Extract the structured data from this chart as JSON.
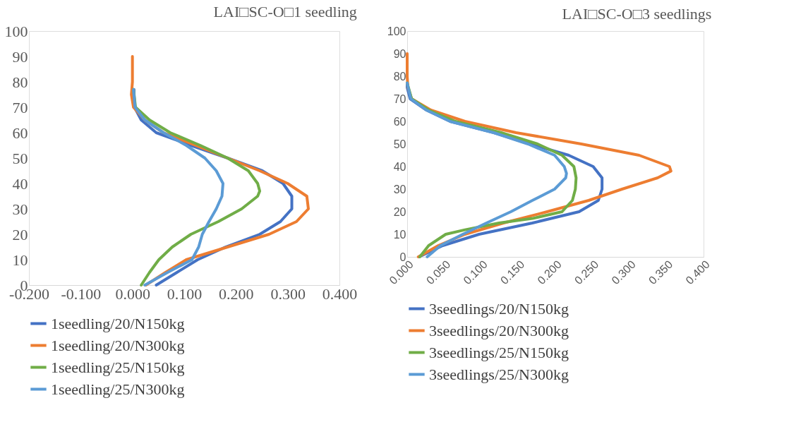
{
  "chart_data": [
    {
      "type": "line",
      "title": "LAI□SC-O□1 seedling",
      "xlim": [
        -0.2,
        0.4
      ],
      "xticks": [
        {
          "value": -0.2,
          "label": "-0.200"
        },
        {
          "value": -0.1,
          "label": "-0.100"
        },
        {
          "value": 0,
          "label": "0.000"
        },
        {
          "value": 0.1,
          "label": "0.100"
        },
        {
          "value": 0.2,
          "label": "0.200"
        },
        {
          "value": 0.3,
          "label": "0.300"
        },
        {
          "value": 0.4,
          "label": "0.400"
        }
      ],
      "ylim": [
        0,
        100
      ],
      "yticks": [
        0,
        10,
        20,
        30,
        40,
        50,
        60,
        70,
        80,
        90,
        100
      ],
      "legend": "bottom",
      "grid": false,
      "marker": "none",
      "series": [
        {
          "name": "1seedling/20/N150kg",
          "color": "#4472c4",
          "x": [
            0.003,
            0.004,
            0.017,
            0.046,
            0.113,
            0.184,
            0.251,
            0.291,
            0.308,
            0.308,
            0.286,
            0.246,
            0.18,
            0.126,
            0.086,
            0.046
          ],
          "values": [
            77,
            70,
            65,
            60,
            55,
            50,
            45,
            40,
            35,
            30,
            25,
            20,
            15,
            10,
            5,
            0
          ]
        },
        {
          "name": "1seedling/20/N300kg",
          "color": "#ed7d31",
          "x": [
            0.0,
            0.0,
            -0.002,
            0.002,
            0.024,
            0.06,
            0.122,
            0.184,
            0.246,
            0.3,
            0.337,
            0.34,
            0.317,
            0.264,
            0.184,
            0.104,
            0.064,
            0.026
          ],
          "values": [
            90,
            80,
            75,
            70,
            65,
            60,
            55,
            50,
            45,
            40,
            35,
            30,
            25,
            20,
            15,
            10,
            5,
            0
          ]
        },
        {
          "name": "1seedling/25/N150kg",
          "color": "#70ad47",
          "x": [
            0.002,
            0.006,
            0.033,
            0.073,
            0.131,
            0.184,
            0.224,
            0.242,
            0.246,
            0.242,
            0.211,
            0.166,
            0.113,
            0.077,
            0.051,
            0.033,
            0.017
          ],
          "values": [
            77,
            70,
            65,
            60,
            55,
            50,
            45,
            40,
            37,
            35,
            30,
            25,
            20,
            15,
            10,
            5,
            0
          ]
        },
        {
          "name": "1seedling/25/N300kg",
          "color": "#5b9bd5",
          "x": [
            0.002,
            0.005,
            0.024,
            0.06,
            0.104,
            0.14,
            0.162,
            0.175,
            0.173,
            0.162,
            0.148,
            0.135,
            0.128,
            0.115,
            0.068,
            0.024
          ],
          "values": [
            77,
            70,
            65,
            60,
            55,
            50,
            45,
            40,
            35,
            30,
            25,
            20,
            15,
            10,
            5,
            0
          ]
        }
      ]
    },
    {
      "type": "line",
      "title": "LAI□SC-O□3 seedlings",
      "xlim": [
        0,
        0.4
      ],
      "xticks": [
        {
          "value": 0,
          "label": "0.000"
        },
        {
          "value": 0.05,
          "label": "0.050"
        },
        {
          "value": 0.1,
          "label": "0.100"
        },
        {
          "value": 0.15,
          "label": "0.150"
        },
        {
          "value": 0.2,
          "label": "0.200"
        },
        {
          "value": 0.25,
          "label": "0.250"
        },
        {
          "value": 0.3,
          "label": "0.300"
        },
        {
          "value": 0.35,
          "label": "0.350"
        },
        {
          "value": 0.4,
          "label": "0.400"
        }
      ],
      "ylim": [
        0,
        100
      ],
      "yticks": [
        0,
        10,
        20,
        30,
        40,
        50,
        60,
        70,
        80,
        90,
        100
      ],
      "legend": "bottom",
      "grid": false,
      "marker": "none",
      "series": [
        {
          "name": "3seedlings/20/N150kg",
          "color": "#4472c4",
          "x": [
            0.0,
            0.0,
            0.004,
            0.026,
            0.058,
            0.117,
            0.166,
            0.218,
            0.251,
            0.263,
            0.263,
            0.258,
            0.232,
            0.169,
            0.097,
            0.048,
            0.016
          ],
          "values": [
            77,
            75,
            70,
            65,
            60,
            55,
            50,
            45,
            40,
            35,
            30,
            25,
            20,
            15,
            10,
            5,
            0
          ]
        },
        {
          "name": "3seedlings/20/N300kg",
          "color": "#ed7d31",
          "x": [
            0.0,
            0.0,
            0.001,
            0.006,
            0.032,
            0.078,
            0.147,
            0.235,
            0.313,
            0.354,
            0.356,
            0.338,
            0.29,
            0.245,
            0.189,
            0.13,
            0.078,
            0.042,
            0.015
          ],
          "values": [
            90,
            80,
            75,
            70,
            65,
            60,
            55,
            50,
            45,
            40,
            38,
            35,
            30,
            25,
            20,
            15,
            10,
            5,
            0
          ]
        },
        {
          "name": "3seedlings/25/N150kg",
          "color": "#70ad47",
          "x": [
            0.0,
            0.006,
            0.029,
            0.065,
            0.127,
            0.176,
            0.209,
            0.225,
            0.228,
            0.227,
            0.223,
            0.209,
            0.169,
            0.124,
            0.078,
            0.052,
            0.029,
            0.017
          ],
          "values": [
            77,
            70,
            65,
            60,
            55,
            50,
            45,
            40,
            35,
            30,
            25,
            20,
            17,
            15,
            12,
            10,
            5,
            0
          ]
        },
        {
          "name": "3seedlings/25/N300kg",
          "color": "#5b9bd5",
          "x": [
            0.0,
            0.005,
            0.026,
            0.058,
            0.117,
            0.163,
            0.199,
            0.212,
            0.215,
            0.214,
            0.199,
            0.169,
            0.14,
            0.107,
            0.075,
            0.045,
            0.027
          ],
          "values": [
            77,
            70,
            65,
            60,
            55,
            50,
            45,
            40,
            37,
            35,
            30,
            25,
            20,
            15,
            10,
            5,
            0
          ]
        }
      ]
    }
  ]
}
